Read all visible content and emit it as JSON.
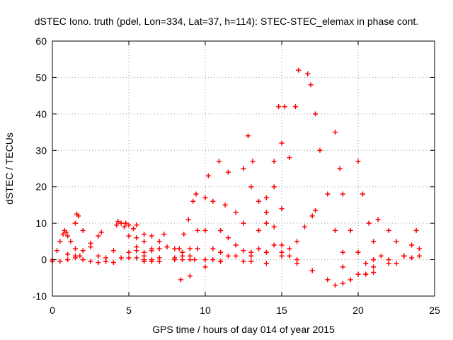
{
  "chart_data": {
    "type": "scatter",
    "title": "dSTEC Iono. truth (pdel, Lon=334, Lat=37, h=114): STEC-STEC_elemax in phase cont.",
    "xlabel": "GPS time / hours of day 014 of year 2015",
    "ylabel": "dSTEC  / TECUs",
    "xlim": [
      0,
      25
    ],
    "ylim": [
      -10,
      60
    ],
    "xticks": [
      0,
      5,
      10,
      15,
      20,
      25
    ],
    "yticks": [
      -10,
      0,
      10,
      20,
      30,
      40,
      50,
      60
    ],
    "grid": true,
    "marker": "+",
    "color": "#ff0000",
    "series": [
      {
        "x": [
          0.0,
          0.3,
          0.5,
          0.7,
          0.8,
          0.9,
          1.0,
          1.2,
          1.5,
          1.8
        ],
        "y": [
          0.0,
          2.5,
          5.0,
          7.0,
          8.0,
          7.5,
          6.5,
          5.0,
          3.0,
          1.0
        ]
      },
      {
        "x": [
          0.0,
          0.5,
          1.0,
          1.5,
          2.0,
          2.5,
          3.0,
          3.2
        ],
        "y": [
          -0.5,
          -0.5,
          0.0,
          1.0,
          2.5,
          4.5,
          6.5,
          7.5
        ]
      },
      {
        "x": [
          1.5,
          1.6,
          1.7,
          2.0,
          2.5,
          3.0,
          3.5,
          4.0
        ],
        "y": [
          10.0,
          12.5,
          12.0,
          8.0,
          3.5,
          1.0,
          -0.5,
          -0.8
        ]
      },
      {
        "x": [
          1.0,
          1.5,
          2.0,
          2.5,
          3.0,
          3.5,
          4.0
        ],
        "y": [
          1.5,
          0.5,
          0.0,
          -0.5,
          -0.8,
          0.5,
          2.5
        ]
      },
      {
        "x": [
          4.2,
          4.3,
          4.5,
          5.0,
          5.5,
          6.0,
          6.5
        ],
        "y": [
          9.5,
          10.5,
          10.0,
          6.5,
          2.5,
          0.0,
          -0.5
        ]
      },
      {
        "x": [
          4.7,
          4.8,
          5.0,
          5.5,
          6.0,
          6.5
        ],
        "y": [
          9.0,
          10.0,
          9.5,
          6.0,
          2.0,
          0.0
        ]
      },
      {
        "x": [
          5.3,
          5.5,
          6.0,
          6.5,
          7.0
        ],
        "y": [
          8.5,
          9.5,
          7.0,
          3.0,
          0.5
        ]
      },
      {
        "x": [
          4.5,
          5.0,
          5.5,
          6.0,
          6.5
        ],
        "y": [
          0.5,
          2.0,
          3.5,
          5.0,
          6.5
        ]
      },
      {
        "x": [
          5.5,
          6.0,
          6.5,
          7.0,
          7.3
        ],
        "y": [
          0.5,
          1.0,
          2.5,
          5.0,
          7.0
        ]
      },
      {
        "x": [
          5.0,
          6.0,
          7.0,
          8.0,
          8.5
        ],
        "y": [
          0.5,
          -0.5,
          -0.5,
          0.0,
          1.0
        ]
      },
      {
        "x": [
          7.0,
          7.5,
          8.0,
          8.5,
          9.0,
          9.3
        ],
        "y": [
          3.0,
          3.5,
          3.0,
          2.0,
          1.0,
          0.0
        ]
      },
      {
        "x": [
          8.0,
          8.3,
          8.6,
          8.9,
          9.2,
          9.4
        ],
        "y": [
          0.5,
          3.0,
          7.0,
          11.0,
          16.0,
          18.0
        ]
      },
      {
        "x": [
          8.5,
          9.0,
          9.5,
          10.0,
          10.2
        ],
        "y": [
          0.0,
          3.0,
          8.0,
          17.0,
          23.0
        ]
      },
      {
        "x": [
          9.0,
          9.5,
          10.0,
          10.5,
          10.9
        ],
        "y": [
          0.0,
          3.0,
          8.0,
          16.0,
          27.0
        ]
      },
      {
        "x": [
          10.0,
          10.5,
          11.0,
          11.3,
          11.5
        ],
        "y": [
          0.0,
          3.0,
          8.0,
          15.0,
          24.0
        ]
      },
      {
        "x": [
          10.5,
          11.0,
          11.5,
          12.0,
          12.5,
          12.8
        ],
        "y": [
          0.0,
          2.0,
          6.0,
          13.0,
          25.0,
          34.0
        ]
      },
      {
        "x": [
          11.0,
          11.5,
          12.0,
          12.5,
          13.0,
          13.1
        ],
        "y": [
          -0.5,
          1.0,
          4.0,
          10.0,
          20.0,
          27.0
        ]
      },
      {
        "x": [
          12.5,
          13.0,
          13.5,
          14.0,
          14.5,
          14.8
        ],
        "y": [
          -0.5,
          2.0,
          8.0,
          17.0,
          27.0,
          42.0
        ]
      },
      {
        "x": [
          13.0,
          13.5,
          14.0,
          14.5,
          15.0,
          15.2
        ],
        "y": [
          -0.5,
          3.0,
          10.0,
          20.0,
          32.0,
          42.0
        ]
      },
      {
        "x": [
          14.0,
          14.5,
          15.0,
          15.5,
          15.9,
          16.1
        ],
        "y": [
          -1.0,
          4.0,
          14.0,
          28.0,
          42.0,
          52.0
        ]
      },
      {
        "x": [
          16.7,
          16.9,
          17.2,
          17.5,
          18.0,
          18.5,
          19.0
        ],
        "y": [
          51.0,
          48.0,
          40.0,
          30.0,
          18.0,
          8.0,
          2.0
        ]
      },
      {
        "x": [
          18.5,
          18.8,
          19.0,
          19.5,
          20.0,
          20.5,
          21.0
        ],
        "y": [
          35.0,
          25.0,
          18.0,
          8.0,
          2.0,
          -1.0,
          -2.0
        ]
      },
      {
        "x": [
          20.0,
          20.3,
          20.7,
          21.0,
          21.5,
          22.0
        ],
        "y": [
          27.0,
          18.0,
          10.0,
          5.0,
          1.0,
          0.0
        ]
      },
      {
        "x": [
          8.4,
          9.0,
          10.0,
          11.0,
          12.0,
          12.5,
          13.0
        ],
        "y": [
          -5.5,
          -4.5,
          -2.0,
          -0.5,
          1.0,
          2.5,
          1.0
        ]
      },
      {
        "x": [
          14.0,
          15.0,
          16.0,
          17.0,
          18.0,
          18.5,
          19.0,
          19.5
        ],
        "y": [
          2.0,
          1.0,
          -1.0,
          -3.0,
          -5.5,
          -7.0,
          -6.5,
          -5.5
        ]
      },
      {
        "x": [
          19.0,
          20.0,
          20.5,
          21.0,
          21.3
        ],
        "y": [
          -2.0,
          -4.0,
          -4.0,
          0.0,
          11.0
        ]
      },
      {
        "x": [
          20.5,
          21.0,
          22.0,
          23.0,
          24.0
        ],
        "y": [
          -4.0,
          -3.5,
          -1.0,
          1.0,
          3.0
        ]
      },
      {
        "x": [
          22.0,
          22.5,
          23.0,
          23.5,
          24.0
        ],
        "y": [
          8.0,
          5.0,
          1.0,
          0.5,
          1.0
        ]
      },
      {
        "x": [
          22.5,
          23.0,
          23.5,
          23.8
        ],
        "y": [
          -1.0,
          1.0,
          4.0,
          8.0
        ]
      },
      {
        "x": [
          15.0,
          15.5,
          16.0,
          16.5,
          17.0,
          17.2
        ],
        "y": [
          2.0,
          3.0,
          5.0,
          9.0,
          12.0,
          13.5
        ]
      },
      {
        "x": [
          13.5,
          14.0,
          14.5,
          15.0,
          15.5,
          16.0
        ],
        "y": [
          16.0,
          13.0,
          9.0,
          4.0,
          1.0,
          0.0
        ]
      }
    ]
  }
}
